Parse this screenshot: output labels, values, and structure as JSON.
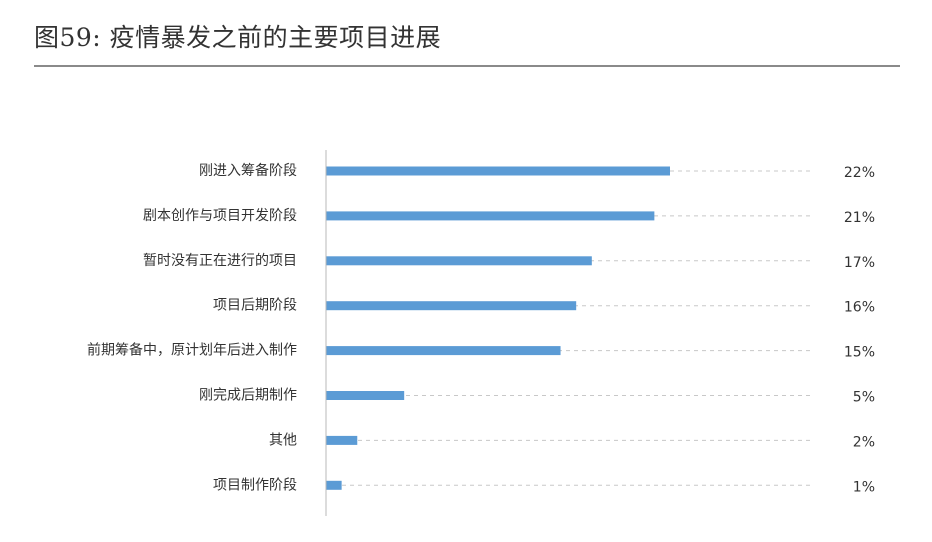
{
  "title": "图59: 疫情暴发之前的主要项目进展",
  "colors": {
    "bar": "#5b9bd5",
    "axis": "#b8b8b8",
    "guide": "#c8c8c8",
    "title_rule": "#8a8a8a"
  },
  "chart_data": {
    "type": "bar",
    "orientation": "horizontal",
    "categories": [
      "刚进入筹备阶段",
      "剧本创作与项目开发阶段",
      "暂时没有正在进行的项目",
      "项目后期阶段",
      "前期筹备中，原计划年后进入制作",
      "刚完成后期制作",
      "其他",
      "项目制作阶段"
    ],
    "values": [
      22,
      21,
      17,
      16,
      15,
      5,
      2,
      1
    ],
    "value_labels": [
      "22%",
      "21%",
      "17%",
      "16%",
      "15%",
      "5%",
      "2%",
      "1%"
    ],
    "unit": "%",
    "xlim": [
      0,
      31
    ],
    "grid": false,
    "dashed_guides": true,
    "legend": "none"
  }
}
